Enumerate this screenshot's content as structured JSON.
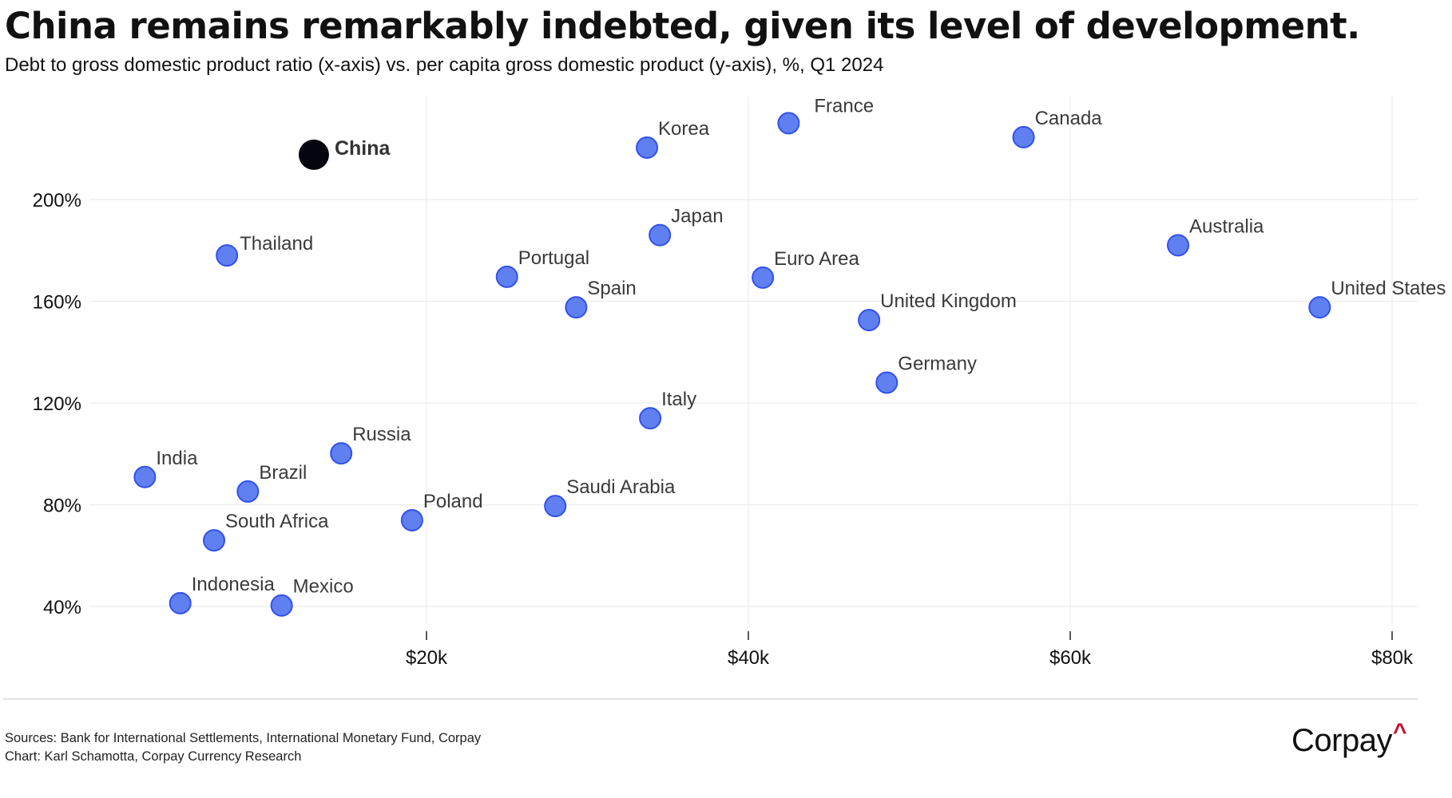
{
  "header": {
    "title": "China remains remarkably indebted, given its level of development.",
    "subtitle": "Debt to gross domestic product ratio (x-axis) vs. per capita gross domestic product (y-axis), %, Q1 2024"
  },
  "footer": {
    "sources": "Sources: Bank for International Settlements, International Monetary Fund, Corpay",
    "credit": "Chart: Karl Schamotta, Corpay Currency Research",
    "logo_text": "Corpay",
    "logo_mark": "^"
  },
  "colors": {
    "point_fill": "#6080f2",
    "point_stroke": "#3150ee",
    "highlight_fill": "#05050f",
    "grid": "#ececec",
    "label_text": "#3a3a3a",
    "logo_accent": "#c8102e"
  },
  "chart_data": {
    "type": "scatter",
    "title": "China remains remarkably indebted, given its level of development.",
    "subtitle": "Debt to gross domestic product ratio (x-axis) vs. per capita gross domestic product (y-axis), %, Q1 2024",
    "xlabel": "",
    "ylabel": "",
    "x_unit": "USD thousands (per capita GDP)",
    "y_unit": "% (debt to GDP)",
    "xlim": [
      -6.5,
      82
    ],
    "ylim": [
      33,
      243
    ],
    "x_ticks": [
      {
        "value": 20,
        "label": "$20k"
      },
      {
        "value": 40,
        "label": "$40k"
      },
      {
        "value": 60,
        "label": "$60k"
      },
      {
        "value": 80,
        "label": "$80k"
      }
    ],
    "y_ticks": [
      {
        "value": 40,
        "label": "40%"
      },
      {
        "value": 80,
        "label": "80%"
      },
      {
        "value": 120,
        "label": "120%"
      },
      {
        "value": 160,
        "label": "160%"
      },
      {
        "value": 200,
        "label": "200%"
      }
    ],
    "grid": true,
    "legend": "none",
    "points": [
      {
        "label": "China",
        "x": 13.0,
        "y": 217.6,
        "highlight": true,
        "label_pos": "right"
      },
      {
        "label": "Korea",
        "x": 33.7,
        "y": 220.4,
        "label_pos": "upper-right"
      },
      {
        "label": "France",
        "x": 42.5,
        "y": 230.0,
        "label_pos": "upper-right-far"
      },
      {
        "label": "Canada",
        "x": 57.1,
        "y": 224.5,
        "label_pos": "upper-right"
      },
      {
        "label": "Thailand",
        "x": 7.6,
        "y": 178.0,
        "label_pos": "right-up"
      },
      {
        "label": "Japan",
        "x": 34.5,
        "y": 186.0,
        "label_pos": "upper-right"
      },
      {
        "label": "Australia",
        "x": 66.7,
        "y": 182.0,
        "label_pos": "upper-right"
      },
      {
        "label": "Portugal",
        "x": 25.0,
        "y": 169.6,
        "label_pos": "upper-right"
      },
      {
        "label": "Euro Area",
        "x": 40.9,
        "y": 169.3,
        "label_pos": "upper-right"
      },
      {
        "label": "Spain",
        "x": 29.3,
        "y": 157.6,
        "label_pos": "upper-right"
      },
      {
        "label": "United Kingdom",
        "x": 47.5,
        "y": 152.6,
        "label_pos": "upper-right"
      },
      {
        "label": "United States",
        "x": 75.5,
        "y": 157.6,
        "label_pos": "upper-right"
      },
      {
        "label": "Germany",
        "x": 48.6,
        "y": 128.0,
        "label_pos": "upper-right"
      },
      {
        "label": "Italy",
        "x": 33.9,
        "y": 114.0,
        "label_pos": "upper-right"
      },
      {
        "label": "Russia",
        "x": 14.7,
        "y": 100.2,
        "label_pos": "upper-right"
      },
      {
        "label": "India",
        "x": 2.5,
        "y": 90.9,
        "label_pos": "upper-right"
      },
      {
        "label": "Brazil",
        "x": 8.9,
        "y": 85.2,
        "label_pos": "upper-right"
      },
      {
        "label": "Saudi Arabia",
        "x": 28.0,
        "y": 79.5,
        "label_pos": "upper-right"
      },
      {
        "label": "Poland",
        "x": 19.1,
        "y": 73.9,
        "label_pos": "upper-right"
      },
      {
        "label": "South Africa",
        "x": 6.8,
        "y": 66.0,
        "label_pos": "upper-right"
      },
      {
        "label": "Indonesia",
        "x": 4.7,
        "y": 41.3,
        "label_pos": "upper-right"
      },
      {
        "label": "Mexico",
        "x": 11.0,
        "y": 40.4,
        "label_pos": "upper-right"
      }
    ]
  }
}
